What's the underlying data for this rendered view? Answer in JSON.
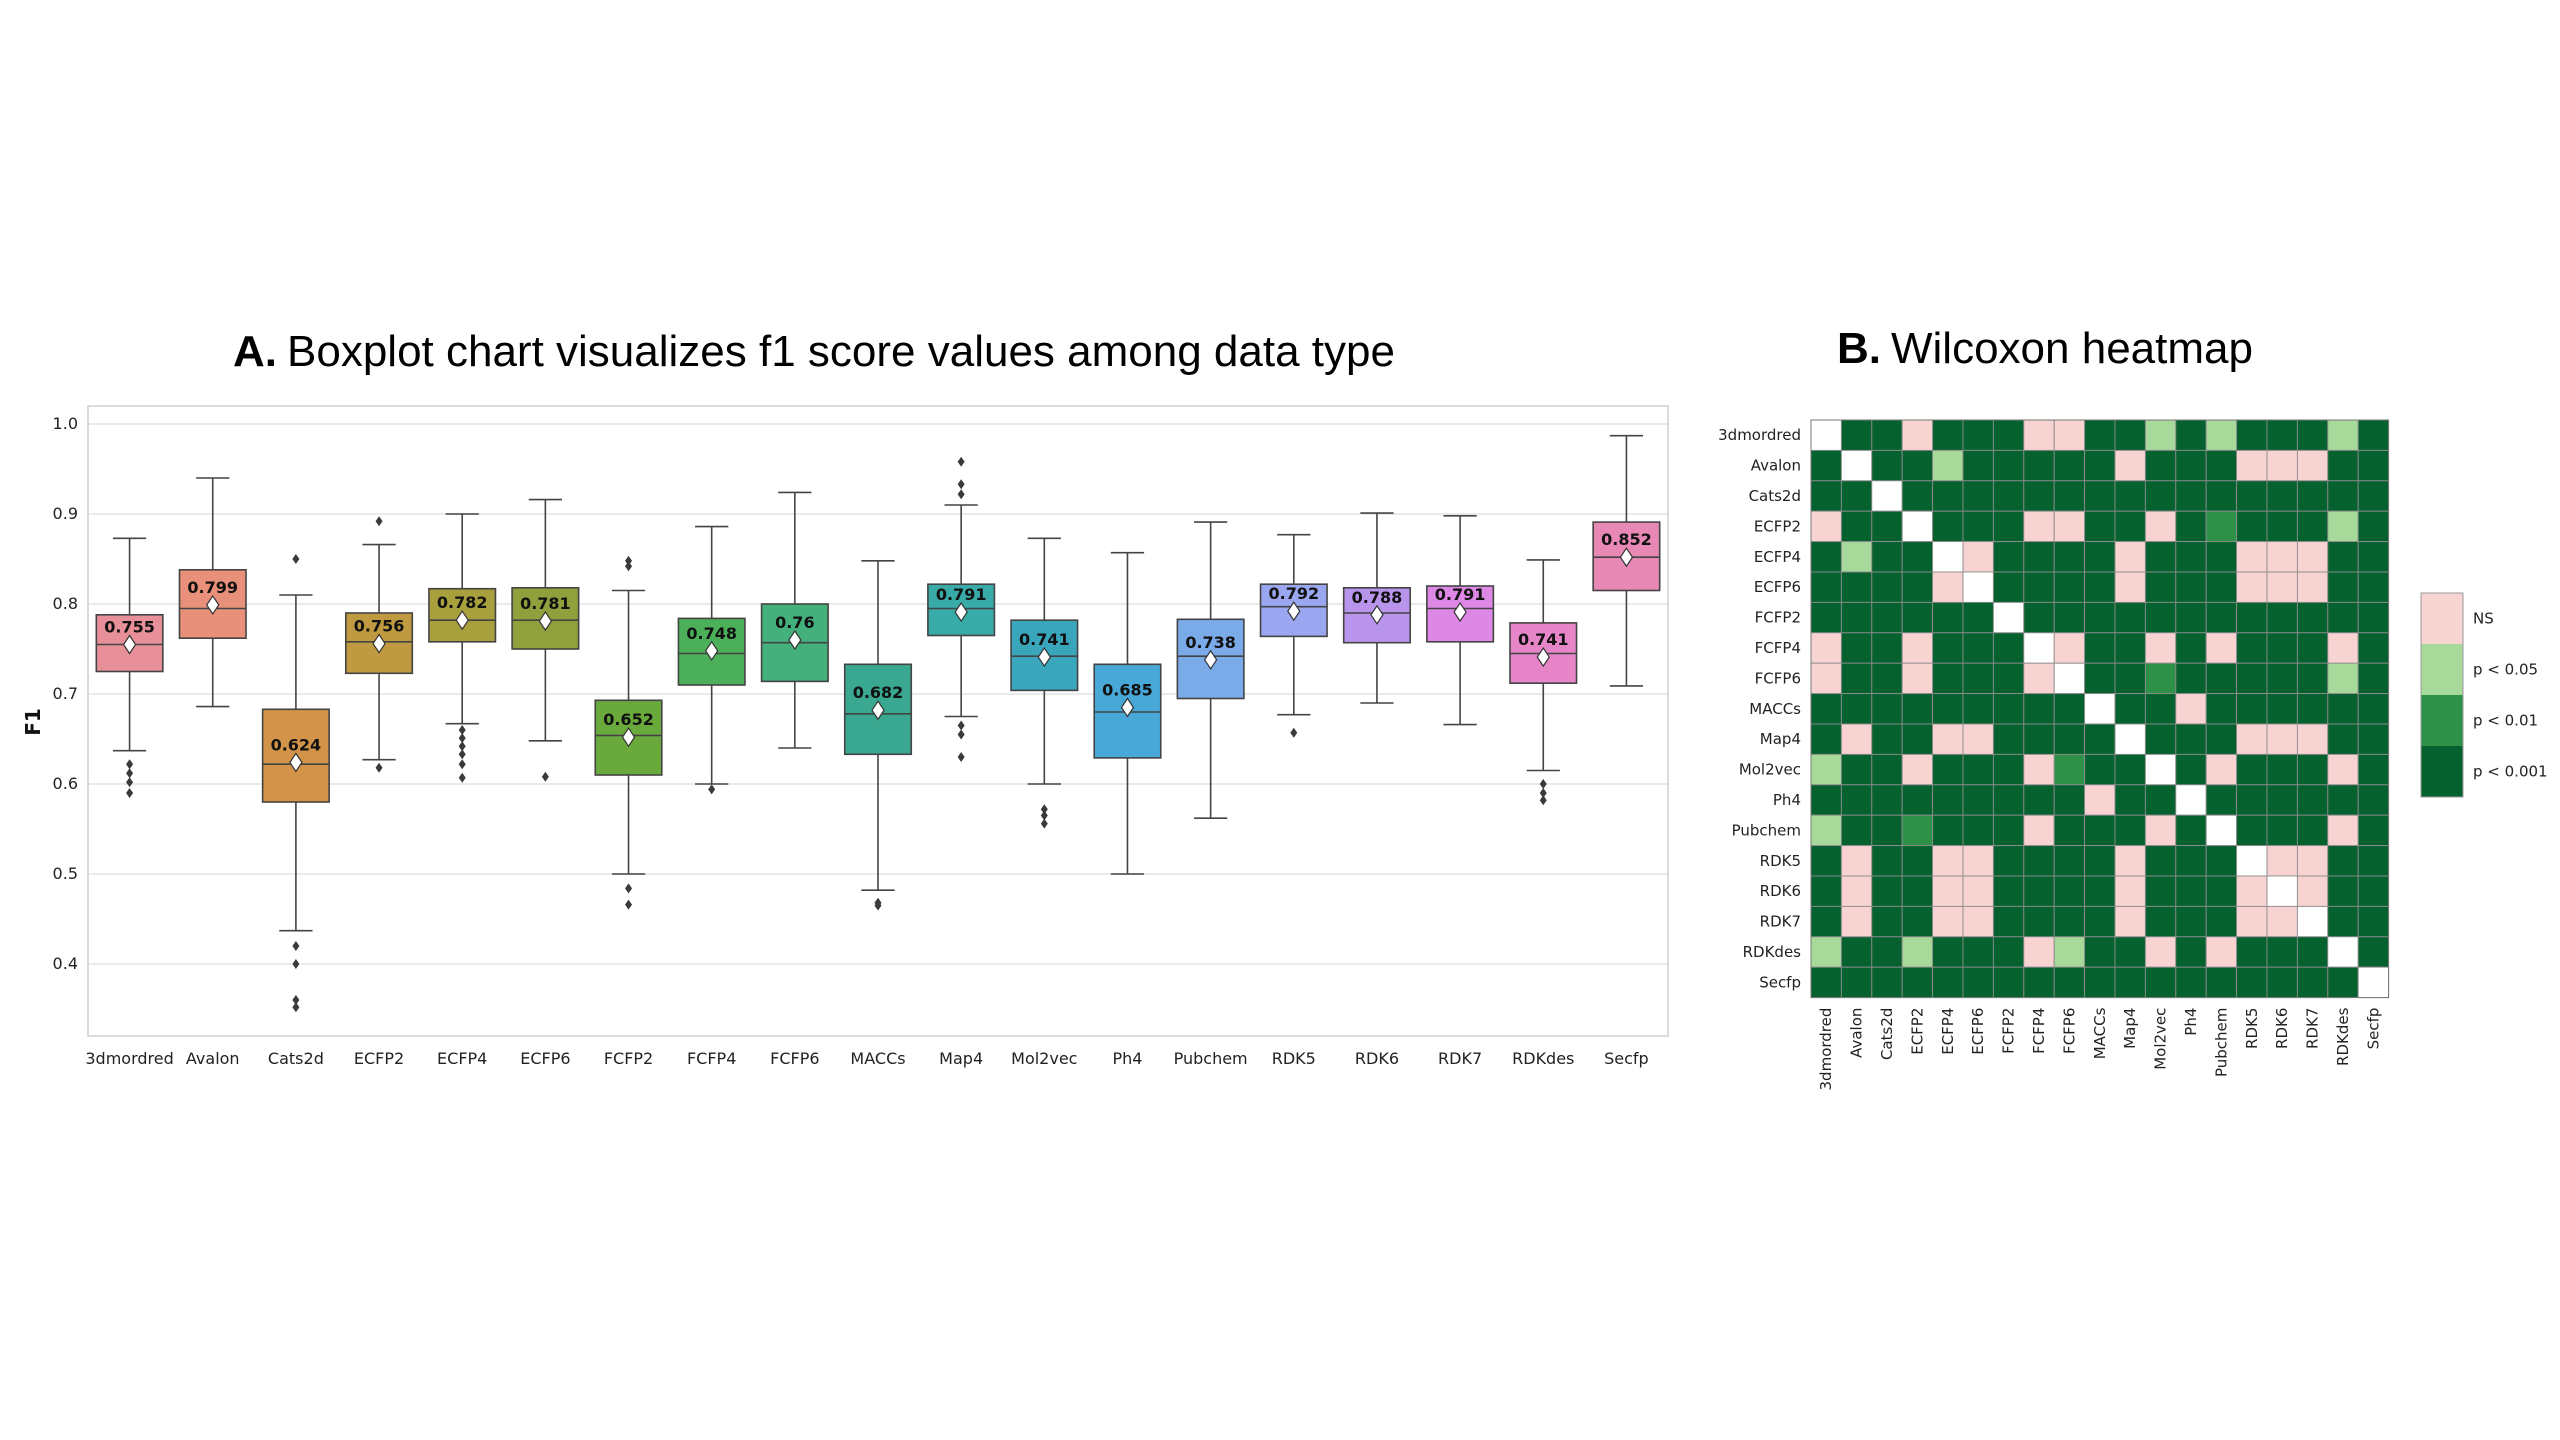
{
  "chart_data": [
    {
      "type": "box",
      "title_prefix": "A.",
      "title": "Boxplot chart visualizes f1 score values among data type",
      "ylabel": "F1",
      "ylim": [
        0.32,
        1.02
      ],
      "yticks": [
        0.4,
        0.5,
        0.6,
        0.7,
        0.8,
        0.9,
        1.0
      ],
      "grid": true,
      "series": [
        {
          "name": "3dmordred",
          "color": "#e8909a",
          "whisker_low": 0.637,
          "q1": 0.725,
          "median": 0.755,
          "q3": 0.788,
          "whisker_high": 0.873,
          "mean": 0.755,
          "outliers": [
            0.622,
            0.612,
            0.602,
            0.59
          ]
        },
        {
          "name": "Avalon",
          "color": "#e8907a",
          "whisker_low": 0.686,
          "q1": 0.762,
          "median": 0.795,
          "q3": 0.838,
          "whisker_high": 0.94,
          "mean": 0.799,
          "outliers": []
        },
        {
          "name": "Cats2d",
          "color": "#d39449",
          "whisker_low": 0.437,
          "q1": 0.58,
          "median": 0.622,
          "q3": 0.683,
          "whisker_high": 0.81,
          "mean": 0.624,
          "outliers": [
            0.85,
            0.42,
            0.4,
            0.36,
            0.352
          ]
        },
        {
          "name": "ECFP2",
          "color": "#c09a40",
          "whisker_low": 0.627,
          "q1": 0.723,
          "median": 0.758,
          "q3": 0.79,
          "whisker_high": 0.866,
          "mean": 0.756,
          "outliers": [
            0.892,
            0.618
          ]
        },
        {
          "name": "ECFP4",
          "color": "#a8a03c",
          "whisker_low": 0.667,
          "q1": 0.758,
          "median": 0.782,
          "q3": 0.817,
          "whisker_high": 0.9,
          "mean": 0.782,
          "outliers": [
            0.66,
            0.651,
            0.642,
            0.633,
            0.622,
            0.607
          ]
        },
        {
          "name": "ECFP6",
          "color": "#8fa03c",
          "whisker_low": 0.648,
          "q1": 0.75,
          "median": 0.782,
          "q3": 0.818,
          "whisker_high": 0.916,
          "mean": 0.781,
          "outliers": [
            0.608
          ]
        },
        {
          "name": "FCFP2",
          "color": "#6aaa3c",
          "whisker_low": 0.5,
          "q1": 0.61,
          "median": 0.654,
          "q3": 0.693,
          "whisker_high": 0.815,
          "mean": 0.652,
          "outliers": [
            0.848,
            0.842,
            0.484,
            0.466
          ]
        },
        {
          "name": "FCFP4",
          "color": "#4cb05a",
          "whisker_low": 0.6,
          "q1": 0.71,
          "median": 0.745,
          "q3": 0.784,
          "whisker_high": 0.886,
          "mean": 0.748,
          "outliers": [
            0.594
          ]
        },
        {
          "name": "FCFP6",
          "color": "#44b07c",
          "whisker_low": 0.64,
          "q1": 0.714,
          "median": 0.757,
          "q3": 0.8,
          "whisker_high": 0.924,
          "mean": 0.76,
          "outliers": []
        },
        {
          "name": "MACCs",
          "color": "#3aa890",
          "whisker_low": 0.482,
          "q1": 0.633,
          "median": 0.678,
          "q3": 0.733,
          "whisker_high": 0.848,
          "mean": 0.682,
          "outliers": [
            0.468,
            0.465
          ]
        },
        {
          "name": "Map4",
          "color": "#38aaa8",
          "whisker_low": 0.675,
          "q1": 0.765,
          "median": 0.795,
          "q3": 0.822,
          "whisker_high": 0.91,
          "mean": 0.791,
          "outliers": [
            0.958,
            0.933,
            0.922,
            0.665,
            0.655,
            0.63
          ]
        },
        {
          "name": "Mol2vec",
          "color": "#3aa6bc",
          "whisker_low": 0.6,
          "q1": 0.704,
          "median": 0.742,
          "q3": 0.782,
          "whisker_high": 0.873,
          "mean": 0.741,
          "outliers": [
            0.572,
            0.565,
            0.556
          ]
        },
        {
          "name": "Ph4",
          "color": "#48a8d8",
          "whisker_low": 0.5,
          "q1": 0.629,
          "median": 0.68,
          "q3": 0.733,
          "whisker_high": 0.857,
          "mean": 0.685,
          "outliers": []
        },
        {
          "name": "Pubchem",
          "color": "#7aaae8",
          "whisker_low": 0.562,
          "q1": 0.695,
          "median": 0.742,
          "q3": 0.783,
          "whisker_high": 0.891,
          "mean": 0.738,
          "outliers": []
        },
        {
          "name": "RDK5",
          "color": "#9aa6f0",
          "whisker_low": 0.677,
          "q1": 0.764,
          "median": 0.797,
          "q3": 0.822,
          "whisker_high": 0.877,
          "mean": 0.792,
          "outliers": [
            0.657
          ]
        },
        {
          "name": "RDK6",
          "color": "#b894ec",
          "whisker_low": 0.69,
          "q1": 0.757,
          "median": 0.79,
          "q3": 0.818,
          "whisker_high": 0.901,
          "mean": 0.788,
          "outliers": []
        },
        {
          "name": "RDK7",
          "color": "#dd88e4",
          "whisker_low": 0.666,
          "q1": 0.758,
          "median": 0.795,
          "q3": 0.82,
          "whisker_high": 0.898,
          "mean": 0.791,
          "outliers": []
        },
        {
          "name": "RDKdes",
          "color": "#e686c8",
          "whisker_low": 0.615,
          "q1": 0.712,
          "median": 0.745,
          "q3": 0.779,
          "whisker_high": 0.849,
          "mean": 0.741,
          "outliers": [
            0.6,
            0.59,
            0.582
          ]
        },
        {
          "name": "Secfp",
          "color": "#e888b4",
          "whisker_low": 0.709,
          "q1": 0.815,
          "median": 0.852,
          "q3": 0.891,
          "whisker_high": 0.987,
          "mean": 0.852,
          "outliers": []
        }
      ],
      "mean_labels": [
        "0.755",
        "0.799",
        "0.624",
        "0.756",
        "0.782",
        "0.781",
        "0.652",
        "0.748",
        "0.76",
        "0.682",
        "0.791",
        "0.741",
        "0.685",
        "0.738",
        "0.792",
        "0.788",
        "0.791",
        "0.741",
        "0.852"
      ]
    },
    {
      "type": "heatmap",
      "title_prefix": "B.",
      "title": "Wilcoxon heatmap",
      "row_labels": [
        "3dmordred",
        "Avalon",
        "Cats2d",
        "ECFP2",
        "ECFP4",
        "ECFP6",
        "FCFP2",
        "FCFP4",
        "FCFP6",
        "MACCs",
        "Map4",
        "Mol2vec",
        "Ph4",
        "Pubchem",
        "RDK5",
        "RDK6",
        "RDK7",
        "RDKdes",
        "Secfp"
      ],
      "col_labels": [
        "3dmordred",
        "Avalon",
        "Cats2d",
        "ECFP2",
        "ECFP4",
        "ECFP6",
        "FCFP2",
        "FCFP4",
        "FCFP6",
        "MACCs",
        "Map4",
        "Mol2vec",
        "Ph4",
        "Pubchem",
        "RDK5",
        "RDK6",
        "RDK7",
        "RDKdes",
        "Secfp"
      ],
      "values_legend": "-1 = diagonal (white), 0 = NS, 1 = p < 0.05, 2 = p < 0.01, 3 = p < 0.001",
      "matrix": [
        [
          -1,
          3,
          3,
          0,
          3,
          3,
          3,
          0,
          0,
          3,
          3,
          1,
          3,
          1,
          3,
          3,
          3,
          1,
          3
        ],
        [
          3,
          -1,
          3,
          3,
          1,
          3,
          3,
          3,
          3,
          3,
          0,
          3,
          3,
          3,
          0,
          0,
          0,
          3,
          3
        ],
        [
          3,
          3,
          -1,
          3,
          3,
          3,
          3,
          3,
          3,
          3,
          3,
          3,
          3,
          3,
          3,
          3,
          3,
          3,
          3
        ],
        [
          0,
          3,
          3,
          -1,
          3,
          3,
          3,
          0,
          0,
          3,
          3,
          0,
          3,
          2,
          3,
          3,
          3,
          1,
          3
        ],
        [
          3,
          1,
          3,
          3,
          -1,
          0,
          3,
          3,
          3,
          3,
          0,
          3,
          3,
          3,
          0,
          0,
          0,
          3,
          3
        ],
        [
          3,
          3,
          3,
          3,
          0,
          -1,
          3,
          3,
          3,
          3,
          0,
          3,
          3,
          3,
          0,
          0,
          0,
          3,
          3
        ],
        [
          3,
          3,
          3,
          3,
          3,
          3,
          -1,
          3,
          3,
          3,
          3,
          3,
          3,
          3,
          3,
          3,
          3,
          3,
          3
        ],
        [
          0,
          3,
          3,
          0,
          3,
          3,
          3,
          -1,
          0,
          3,
          3,
          0,
          3,
          0,
          3,
          3,
          3,
          0,
          3
        ],
        [
          0,
          3,
          3,
          0,
          3,
          3,
          3,
          0,
          -1,
          3,
          3,
          2,
          3,
          3,
          3,
          3,
          3,
          1,
          3
        ],
        [
          3,
          3,
          3,
          3,
          3,
          3,
          3,
          3,
          3,
          -1,
          3,
          3,
          0,
          3,
          3,
          3,
          3,
          3,
          3
        ],
        [
          3,
          0,
          3,
          3,
          0,
          0,
          3,
          3,
          3,
          3,
          -1,
          3,
          3,
          3,
          0,
          0,
          0,
          3,
          3
        ],
        [
          1,
          3,
          3,
          0,
          3,
          3,
          3,
          0,
          2,
          3,
          3,
          -1,
          3,
          0,
          3,
          3,
          3,
          0,
          3
        ],
        [
          3,
          3,
          3,
          3,
          3,
          3,
          3,
          3,
          3,
          0,
          3,
          3,
          -1,
          3,
          3,
          3,
          3,
          3,
          3
        ],
        [
          1,
          3,
          3,
          2,
          3,
          3,
          3,
          0,
          3,
          3,
          3,
          0,
          3,
          -1,
          3,
          3,
          3,
          0,
          3
        ],
        [
          3,
          0,
          3,
          3,
          0,
          0,
          3,
          3,
          3,
          3,
          0,
          3,
          3,
          3,
          -1,
          0,
          0,
          3,
          3
        ],
        [
          3,
          0,
          3,
          3,
          0,
          0,
          3,
          3,
          3,
          3,
          0,
          3,
          3,
          3,
          0,
          -1,
          0,
          3,
          3
        ],
        [
          3,
          0,
          3,
          3,
          0,
          0,
          3,
          3,
          3,
          3,
          0,
          3,
          3,
          3,
          0,
          0,
          -1,
          3,
          3
        ],
        [
          1,
          3,
          3,
          1,
          3,
          3,
          3,
          0,
          1,
          3,
          3,
          0,
          3,
          0,
          3,
          3,
          3,
          -1,
          3
        ],
        [
          3,
          3,
          3,
          3,
          3,
          3,
          3,
          3,
          3,
          3,
          3,
          3,
          3,
          3,
          3,
          3,
          3,
          3,
          -1
        ]
      ],
      "legend": [
        {
          "label": "NS",
          "color": "#f7d3d1"
        },
        {
          "label": "p < 0.05",
          "color": "#a7d99a"
        },
        {
          "label": "p < 0.01",
          "color": "#2e9148"
        },
        {
          "label": "p < 0.001",
          "color": "#05622f"
        }
      ],
      "diagonal_color": "#ffffff"
    }
  ]
}
